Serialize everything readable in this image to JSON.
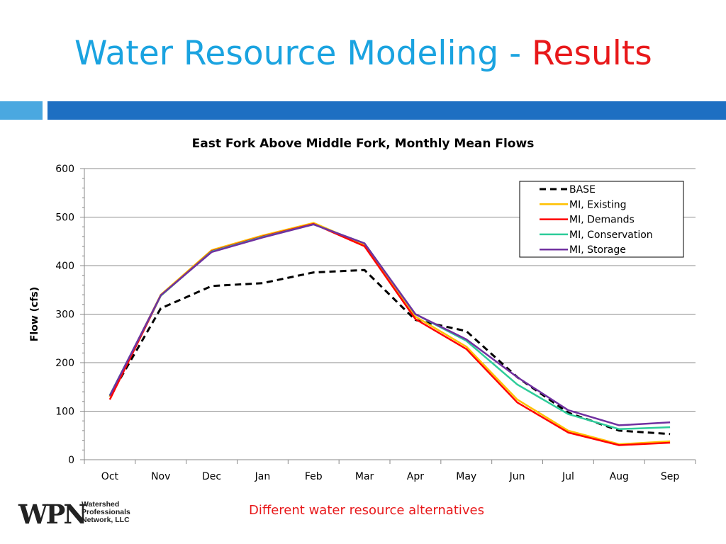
{
  "slide": {
    "title_main": "Water Resource Modeling - ",
    "title_accent": "Results",
    "caption": "Different water resource alternatives",
    "logo": {
      "letters": "WPN",
      "line1": "Watershed",
      "line2": "Professionals",
      "line3": "Network, LLC"
    }
  },
  "colors": {
    "title": "#1aa3e0",
    "accent": "#e8181a",
    "band_light": "#4aa8e0",
    "band_dark": "#1e6fc2"
  },
  "chart_data": {
    "type": "line",
    "title": "East Fork Above Middle Fork, Monthly Mean Flows",
    "xlabel": "",
    "ylabel": "Flow (cfs)",
    "ylim": [
      0,
      600
    ],
    "yticks": [
      0,
      100,
      200,
      300,
      400,
      500,
      600
    ],
    "grid": true,
    "legend_position": "top-right",
    "categories": [
      "Oct",
      "Nov",
      "Dec",
      "Jan",
      "Feb",
      "Mar",
      "Apr",
      "May",
      "Jun",
      "Jul",
      "Aug",
      "Sep"
    ],
    "series": [
      {
        "name": "BASE",
        "color": "#000000",
        "dashed": true,
        "values": [
          130,
          312,
          358,
          364,
          386,
          391,
          288,
          265,
          170,
          97,
          60,
          53
        ]
      },
      {
        "name": "MI, Existing",
        "color": "#ffc000",
        "dashed": false,
        "values": [
          130,
          340,
          432,
          462,
          488,
          443,
          295,
          233,
          124,
          60,
          32,
          38
        ]
      },
      {
        "name": "MI, Demands",
        "color": "#ff0000",
        "dashed": false,
        "values": [
          124,
          338,
          430,
          460,
          486,
          440,
          290,
          228,
          118,
          56,
          30,
          35
        ]
      },
      {
        "name": "MI, Conservation",
        "color": "#2ecc9a",
        "dashed": false,
        "values": [
          133,
          338,
          429,
          459,
          485,
          446,
          300,
          245,
          155,
          94,
          63,
          67
        ]
      },
      {
        "name": "MI, Storage",
        "color": "#7030a0",
        "dashed": false,
        "values": [
          132,
          339,
          428,
          458,
          485,
          446,
          300,
          248,
          170,
          102,
          71,
          77
        ]
      }
    ]
  }
}
